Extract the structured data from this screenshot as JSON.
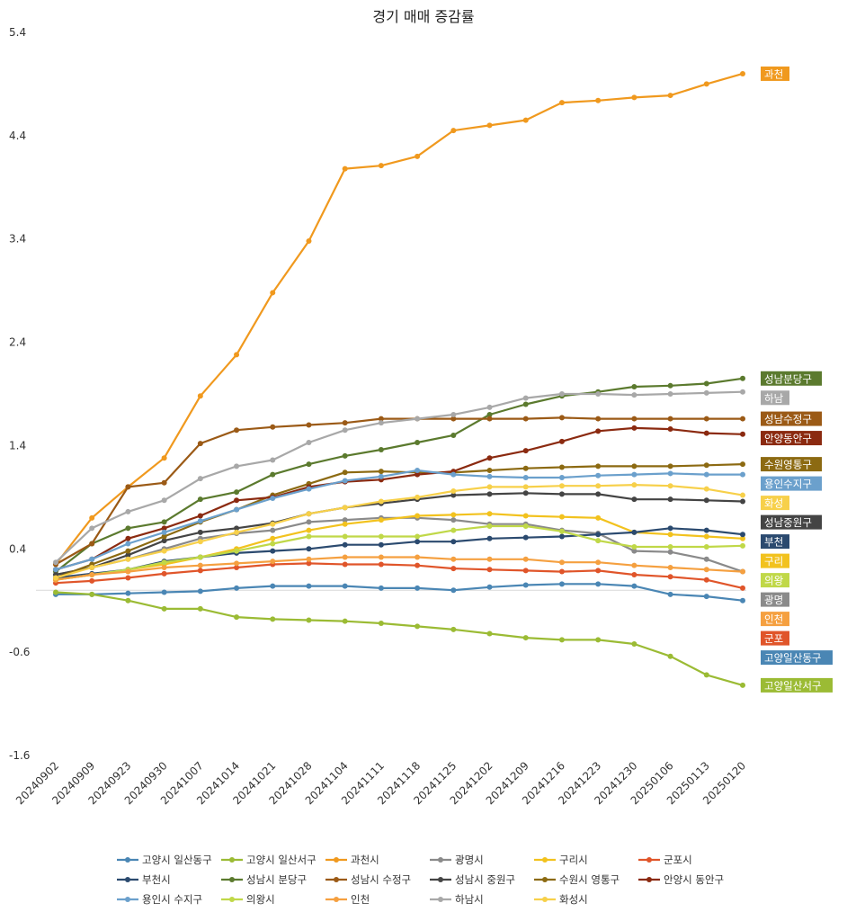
{
  "chart_data": {
    "type": "line",
    "title": "경기 매매 증감률",
    "xlabel": "",
    "ylabel": "",
    "ylim": [
      -1.6,
      5.4
    ],
    "yticks": [
      "5.4",
      "4.4",
      "3.4",
      "2.4",
      "1.4",
      "0.4",
      "-0.6",
      "-1.6"
    ],
    "ytick_values": [
      5.4,
      4.4,
      3.4,
      2.4,
      1.4,
      0.4,
      -0.6,
      -1.6
    ],
    "grid": false,
    "legend_position": "bottom",
    "categories": [
      "20240902",
      "20240909",
      "20240923",
      "20240930",
      "20241007",
      "20241014",
      "20241021",
      "20241028",
      "20241104",
      "20241111",
      "20241118",
      "20241125",
      "20241202",
      "20241209",
      "20241216",
      "20241223",
      "20241230",
      "20250106",
      "20250113",
      "20250120"
    ],
    "series": [
      {
        "name": "고양시 일산동구",
        "label": "고양일산동구",
        "color": "#4a86b4",
        "values": [
          -0.04,
          -0.04,
          -0.03,
          -0.02,
          -0.01,
          0.02,
          0.04,
          0.04,
          0.04,
          0.02,
          0.02,
          0.0,
          0.03,
          0.05,
          0.06,
          0.06,
          0.04,
          -0.04,
          -0.06,
          -0.1
        ]
      },
      {
        "name": "고양시 일산서구",
        "label": "고양일산서구",
        "color": "#9bbb34",
        "values": [
          -0.02,
          -0.04,
          -0.1,
          -0.18,
          -0.18,
          -0.26,
          -0.28,
          -0.29,
          -0.3,
          -0.32,
          -0.35,
          -0.38,
          -0.42,
          -0.46,
          -0.48,
          -0.48,
          -0.52,
          -0.64,
          -0.82,
          -0.92
        ]
      },
      {
        "name": "과천시",
        "label": "과천",
        "color": "#f0991e",
        "values": [
          0.25,
          0.7,
          1.0,
          1.28,
          1.88,
          2.28,
          2.88,
          3.38,
          4.08,
          4.11,
          4.2,
          4.45,
          4.5,
          4.55,
          4.72,
          4.74,
          4.77,
          4.79,
          4.9,
          5.0
        ]
      },
      {
        "name": "광명시",
        "label": "광명",
        "color": "#8a8a8a",
        "values": [
          0.15,
          0.22,
          0.3,
          0.4,
          0.5,
          0.55,
          0.58,
          0.66,
          0.68,
          0.7,
          0.7,
          0.68,
          0.64,
          0.64,
          0.58,
          0.55,
          0.38,
          0.37,
          0.3,
          0.18
        ]
      },
      {
        "name": "구리시",
        "label": "구리",
        "color": "#f2c21e",
        "values": [
          0.1,
          0.15,
          0.2,
          0.25,
          0.32,
          0.4,
          0.5,
          0.58,
          0.64,
          0.68,
          0.72,
          0.73,
          0.74,
          0.72,
          0.71,
          0.7,
          0.56,
          0.54,
          0.52,
          0.5
        ]
      },
      {
        "name": "군포시",
        "label": "군포",
        "color": "#e0552a",
        "values": [
          0.07,
          0.09,
          0.12,
          0.16,
          0.19,
          0.22,
          0.25,
          0.26,
          0.25,
          0.25,
          0.24,
          0.21,
          0.2,
          0.19,
          0.18,
          0.19,
          0.15,
          0.13,
          0.1,
          0.02
        ]
      },
      {
        "name": "부천시",
        "label": "부천",
        "color": "#2b4a6f",
        "values": [
          0.12,
          0.16,
          0.2,
          0.28,
          0.32,
          0.36,
          0.38,
          0.4,
          0.44,
          0.44,
          0.47,
          0.47,
          0.5,
          0.51,
          0.52,
          0.54,
          0.56,
          0.6,
          0.58,
          0.54
        ]
      },
      {
        "name": "성남시 분당구",
        "label": "성남분당구",
        "color": "#5b7a2e",
        "values": [
          0.18,
          0.45,
          0.6,
          0.66,
          0.88,
          0.95,
          1.12,
          1.22,
          1.3,
          1.36,
          1.43,
          1.5,
          1.7,
          1.8,
          1.88,
          1.92,
          1.97,
          1.98,
          2.0,
          2.05
        ]
      },
      {
        "name": "성남시 수정구",
        "label": "성남수정구",
        "color": "#9b5a16",
        "values": [
          0.25,
          0.45,
          1.0,
          1.04,
          1.42,
          1.55,
          1.58,
          1.6,
          1.62,
          1.66,
          1.66,
          1.66,
          1.66,
          1.66,
          1.67,
          1.66,
          1.66,
          1.66,
          1.66,
          1.66
        ]
      },
      {
        "name": "성남시 중원구",
        "label": "성남중원구",
        "color": "#444444",
        "values": [
          0.15,
          0.22,
          0.34,
          0.48,
          0.56,
          0.6,
          0.65,
          0.74,
          0.8,
          0.84,
          0.88,
          0.92,
          0.93,
          0.94,
          0.93,
          0.93,
          0.88,
          0.88,
          0.87,
          0.86
        ]
      },
      {
        "name": "수원시 영통구",
        "label": "수원영통구",
        "color": "#8c6a12",
        "values": [
          0.12,
          0.25,
          0.38,
          0.52,
          0.66,
          0.78,
          0.92,
          1.03,
          1.14,
          1.15,
          1.14,
          1.14,
          1.16,
          1.18,
          1.19,
          1.2,
          1.2,
          1.2,
          1.21,
          1.22
        ]
      },
      {
        "name": "안양시 동안구",
        "label": "안양동안구",
        "color": "#8b2a10",
        "values": [
          0.2,
          0.3,
          0.5,
          0.6,
          0.72,
          0.87,
          0.9,
          1.0,
          1.05,
          1.07,
          1.12,
          1.15,
          1.28,
          1.35,
          1.44,
          1.54,
          1.57,
          1.56,
          1.52,
          1.51
        ]
      },
      {
        "name": "용인시 수지구",
        "label": "용인수지구",
        "color": "#6ba0cc",
        "values": [
          0.2,
          0.3,
          0.45,
          0.56,
          0.67,
          0.78,
          0.89,
          0.98,
          1.06,
          1.1,
          1.16,
          1.12,
          1.1,
          1.09,
          1.09,
          1.11,
          1.12,
          1.13,
          1.12,
          1.12
        ]
      },
      {
        "name": "의왕시",
        "label": "의왕",
        "color": "#c0d848",
        "values": [
          0.1,
          0.15,
          0.2,
          0.27,
          0.32,
          0.38,
          0.45,
          0.52,
          0.52,
          0.52,
          0.52,
          0.58,
          0.62,
          0.62,
          0.57,
          0.48,
          0.42,
          0.42,
          0.42,
          0.43
        ]
      },
      {
        "name": "인천",
        "label": "인천",
        "color": "#f5a040",
        "values": [
          0.1,
          0.15,
          0.18,
          0.22,
          0.24,
          0.26,
          0.28,
          0.3,
          0.32,
          0.32,
          0.32,
          0.3,
          0.3,
          0.3,
          0.27,
          0.27,
          0.24,
          0.22,
          0.2,
          0.18
        ]
      },
      {
        "name": "하남시",
        "label": "하남",
        "color": "#a8a8a8",
        "values": [
          0.27,
          0.6,
          0.76,
          0.87,
          1.08,
          1.2,
          1.26,
          1.43,
          1.55,
          1.62,
          1.66,
          1.7,
          1.77,
          1.86,
          1.9,
          1.9,
          1.89,
          1.9,
          1.91,
          1.92
        ]
      },
      {
        "name": "화성시",
        "label": "화성",
        "color": "#f7d04a",
        "values": [
          0.12,
          0.22,
          0.3,
          0.38,
          0.47,
          0.56,
          0.64,
          0.74,
          0.8,
          0.86,
          0.9,
          0.96,
          1.0,
          1.0,
          1.01,
          1.01,
          1.02,
          1.01,
          0.98,
          0.92
        ]
      }
    ]
  }
}
